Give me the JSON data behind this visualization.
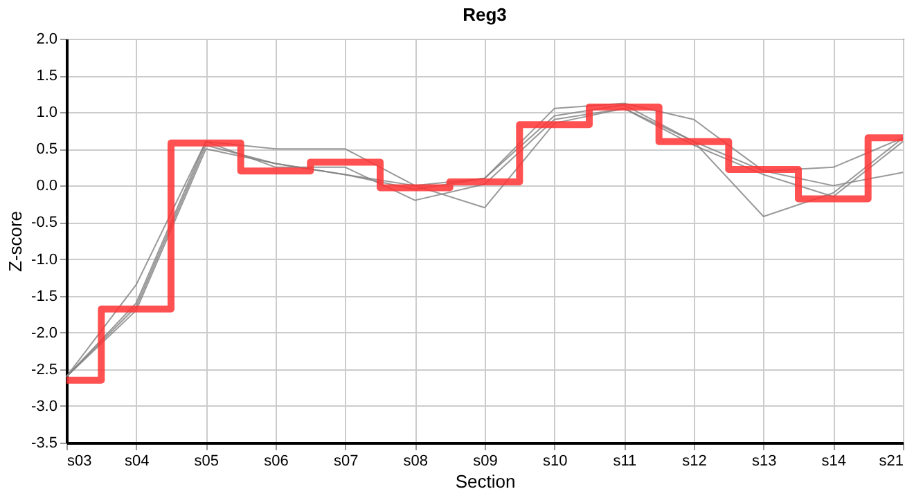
{
  "chart_data": {
    "type": "line",
    "title": "Reg3",
    "xlabel": "Section",
    "ylabel": "Z-score",
    "categories": [
      "s03",
      "s04",
      "s05",
      "s06",
      "s07",
      "s08",
      "s09",
      "s10",
      "s11",
      "s12",
      "s13",
      "s14",
      "s21"
    ],
    "series": [
      {
        "type": "line",
        "color": "#808080",
        "values": [
          -2.6,
          -1.6,
          0.6,
          0.5,
          0.5,
          0.0,
          0.1,
          1.05,
          1.12,
          0.9,
          0.2,
          0.25,
          0.65
        ]
      },
      {
        "type": "line",
        "color": "#808080",
        "values": [
          -2.6,
          -1.65,
          0.55,
          0.3,
          0.15,
          -0.05,
          0.1,
          0.95,
          1.1,
          0.6,
          -0.42,
          -0.1,
          0.65
        ]
      },
      {
        "type": "line",
        "color": "#808080",
        "values": [
          -2.6,
          -1.35,
          0.6,
          0.25,
          0.25,
          -0.2,
          0.02,
          0.9,
          1.05,
          0.6,
          0.2,
          0.0,
          0.18
        ]
      },
      {
        "type": "line",
        "color": "#808080",
        "values": [
          -2.6,
          -1.7,
          0.5,
          0.3,
          0.15,
          0.0,
          -0.3,
          0.85,
          1.05,
          0.55,
          0.15,
          -0.15,
          0.6
        ]
      },
      {
        "type": "step",
        "color": "#ff3333",
        "values": [
          -2.65,
          -1.68,
          0.58,
          0.2,
          0.32,
          -0.03,
          0.05,
          0.83,
          1.07,
          0.6,
          0.22,
          -0.18,
          0.65
        ]
      }
    ],
    "ylim": [
      -3.5,
      2.0
    ],
    "yticks": [
      {
        "value": -3.5,
        "label": "-3.5"
      },
      {
        "value": -3,
        "label": "-3.0"
      },
      {
        "value": -2.5,
        "label": "-2.5"
      },
      {
        "value": -2,
        "label": "-2.0"
      },
      {
        "value": -1.5,
        "label": "-1.5"
      },
      {
        "value": -1,
        "label": "-1.0"
      },
      {
        "value": -0.5,
        "label": "-0.5"
      },
      {
        "value": 0,
        "label": "0.0"
      },
      {
        "value": 0.5,
        "label": "0.5"
      },
      {
        "value": 1,
        "label": "1.0"
      },
      {
        "value": 1.5,
        "label": "1.5"
      },
      {
        "value": 2,
        "label": "2.0"
      }
    ],
    "grid": true,
    "legend": false
  }
}
